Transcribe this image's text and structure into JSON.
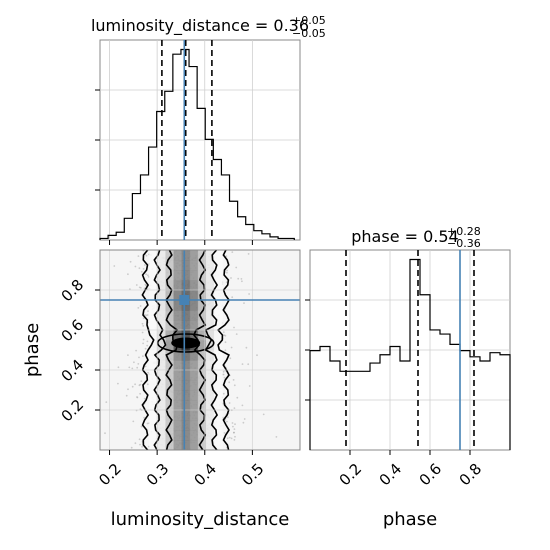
{
  "chart_data": [
    {
      "panel": "hist-luminosity_distance",
      "type": "histogram",
      "title_main": "luminosity_distance = 0.36",
      "title_sup": "+0.05",
      "title_sub": "−0.05",
      "xlim": [
        0.18,
        0.6
      ],
      "bins": [
        0.18,
        0.197,
        0.214,
        0.231,
        0.248,
        0.265,
        0.282,
        0.299,
        0.316,
        0.333,
        0.35,
        0.367,
        0.384,
        0.401,
        0.418,
        0.435,
        0.452,
        0.469,
        0.486,
        0.503,
        0.52,
        0.537,
        0.554,
        0.571,
        0.588
      ],
      "counts": [
        1,
        3,
        5,
        14,
        30,
        42,
        60,
        83,
        96,
        120,
        123,
        112,
        85,
        65,
        52,
        42,
        25,
        15,
        10,
        6,
        4,
        2,
        1,
        1
      ],
      "median": 0.36,
      "quantiles": [
        0.31,
        0.36,
        0.415
      ],
      "truth": 0.357
    },
    {
      "panel": "hist-phase",
      "type": "histogram",
      "title_main": "phase = 0.54",
      "title_sup": "+0.28",
      "title_sub": "−0.36",
      "xlim": [
        0.0,
        1.0
      ],
      "bins": [
        0.0,
        0.05,
        0.1,
        0.15,
        0.2,
        0.25,
        0.3,
        0.35,
        0.4,
        0.45,
        0.5,
        0.55,
        0.6,
        0.65,
        0.7,
        0.75,
        0.8,
        0.85,
        0.9,
        0.95,
        1.0
      ],
      "counts": [
        48,
        50,
        43,
        38,
        38,
        38,
        42,
        46,
        50,
        43,
        92,
        75,
        58,
        56,
        51,
        48,
        45,
        43,
        47,
        46
      ],
      "quantiles": [
        0.18,
        0.54,
        0.82
      ],
      "truth": 0.75,
      "xticks": [
        "0.2",
        "0.4",
        "0.6",
        "0.8"
      ],
      "xlabel": "phase"
    },
    {
      "panel": "corner-2d",
      "type": "scatter-density",
      "xlim": [
        0.18,
        0.6
      ],
      "ylim": [
        0.0,
        1.0
      ],
      "xticks": [
        "0.2",
        "0.3",
        "0.4",
        "0.5"
      ],
      "yticks": [
        "0.2",
        "0.4",
        "0.6",
        "0.8"
      ],
      "xlabel": "luminosity_distance",
      "ylabel": "phase",
      "truth": [
        0.357,
        0.75
      ]
    }
  ],
  "colors": {
    "truth": "#4682b4",
    "hist": "#000000",
    "grid": "#cfcfcf"
  }
}
